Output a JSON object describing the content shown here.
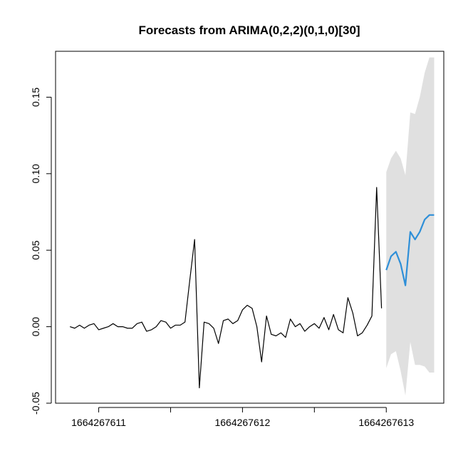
{
  "chart_data": {
    "type": "line",
    "title": "Forecasts from ARIMA(0,2,2)(0,1,0)[30]",
    "xlabel": "",
    "ylabel": "",
    "xlim": [
      1664267610.7,
      1664267613.4
    ],
    "ylim": [
      -0.05,
      0.18
    ],
    "x_ticks": [
      1664267611,
      1664267611.5,
      1664267612,
      1664267612.5,
      1664267613
    ],
    "x_tick_labels": [
      "1664267611",
      "",
      "1664267612",
      "",
      "1664267613"
    ],
    "y_ticks": [
      -0.05,
      0.0,
      0.05,
      0.1,
      0.15
    ],
    "y_tick_labels": [
      "-0.05",
      "0.00",
      "0.05",
      "0.10",
      "0.15"
    ],
    "grid": false,
    "legend": "none",
    "colors": {
      "history": "#000000",
      "forecast": "#2E8FD8",
      "interval": "#E0E0E0",
      "frame": "#000000"
    },
    "series": [
      {
        "role": "history",
        "x": [
          1664267610.8,
          1664267610.833,
          1664267610.867,
          1664267610.9,
          1664267610.933,
          1664267610.967,
          1664267611.0,
          1664267611.033,
          1664267611.067,
          1664267611.1,
          1664267611.133,
          1664267611.167,
          1664267611.2,
          1664267611.233,
          1664267611.267,
          1664267611.3,
          1664267611.333,
          1664267611.367,
          1664267611.4,
          1664267611.433,
          1664267611.467,
          1664267611.5,
          1664267611.533,
          1664267611.567,
          1664267611.6,
          1664267611.633,
          1664267611.667,
          1664267611.7,
          1664267611.733,
          1664267611.767,
          1664267611.8,
          1664267611.833,
          1664267611.867,
          1664267611.9,
          1664267611.933,
          1664267611.967,
          1664267612.0,
          1664267612.033,
          1664267612.067,
          1664267612.1,
          1664267612.133,
          1664267612.167,
          1664267612.2,
          1664267612.233,
          1664267612.267,
          1664267612.3,
          1664267612.333,
          1664267612.367,
          1664267612.4,
          1664267612.433,
          1664267612.467,
          1664267612.5,
          1664267612.533,
          1664267612.567,
          1664267612.6,
          1664267612.633,
          1664267612.667,
          1664267612.7,
          1664267612.733,
          1664267612.767,
          1664267612.8,
          1664267612.833,
          1664267612.867,
          1664267612.9,
          1664267612.933,
          1664267612.967
        ],
        "y": [
          0.0,
          -0.001,
          0.001,
          -0.001,
          0.001,
          0.002,
          -0.002,
          -0.001,
          0.0,
          0.002,
          0.0,
          0.0,
          -0.001,
          -0.001,
          0.002,
          0.003,
          -0.003,
          -0.002,
          0.0,
          0.004,
          0.003,
          -0.001,
          0.001,
          0.001,
          0.003,
          0.03,
          0.057,
          -0.04,
          0.003,
          0.002,
          -0.001,
          -0.011,
          0.004,
          0.005,
          0.002,
          0.004,
          0.011,
          0.014,
          0.012,
          0.0,
          -0.023,
          0.007,
          -0.005,
          -0.006,
          -0.004,
          -0.007,
          0.005,
          0.0,
          0.002,
          -0.003,
          0.0,
          0.002,
          -0.001,
          0.006,
          -0.002,
          0.008,
          -0.002,
          -0.004,
          0.019,
          0.009,
          -0.006,
          -0.004,
          0.001,
          0.007,
          0.091,
          0.012
        ]
      },
      {
        "role": "forecast",
        "x": [
          1664267613.0,
          1664267613.033,
          1664267613.067,
          1664267613.1,
          1664267613.133,
          1664267613.167,
          1664267613.2,
          1664267613.233,
          1664267613.267,
          1664267613.3,
          1664267613.333
        ],
        "y": [
          0.037,
          0.046,
          0.049,
          0.041,
          0.027,
          0.062,
          0.057,
          0.062,
          0.07,
          0.073,
          0.073
        ],
        "lower": [
          -0.027,
          -0.018,
          -0.016,
          -0.029,
          -0.045,
          -0.01,
          -0.025,
          -0.025,
          -0.026,
          -0.03,
          -0.03
        ],
        "upper": [
          0.101,
          0.11,
          0.115,
          0.11,
          0.099,
          0.14,
          0.139,
          0.15,
          0.166,
          0.176,
          0.176
        ]
      }
    ]
  }
}
